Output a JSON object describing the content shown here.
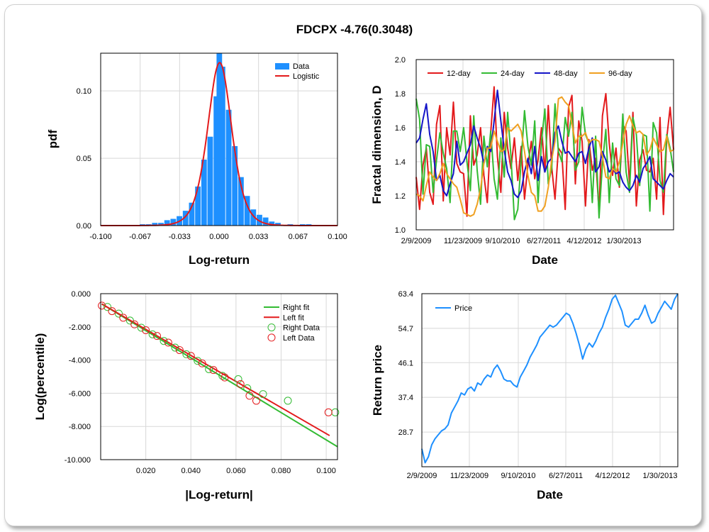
{
  "title": "FDCPX -4.76(0.3048)",
  "chart_data": [
    {
      "id": "hist",
      "type": "bar",
      "xlabel": "Log-return",
      "ylabel": "pdf",
      "xlim": [
        -0.1,
        0.1
      ],
      "ylim": [
        0,
        0.128
      ],
      "xticks": [
        "-0.100",
        "-0.067",
        "-0.033",
        "0.000",
        "0.033",
        "0.067",
        "0.100"
      ],
      "yticks": [
        "0.00",
        "0.05",
        "0.10"
      ],
      "legend": [
        "Data",
        "Logistic"
      ],
      "legend_position": "top-right",
      "colors": {
        "bars": "#1e90ff",
        "fit": "#e31a1c"
      },
      "bin_width": 0.0052,
      "bins": [
        [
          -0.0647,
          0.001
        ],
        [
          -0.0595,
          0.001
        ],
        [
          -0.0543,
          0.002
        ],
        [
          -0.0491,
          0.002
        ],
        [
          -0.0439,
          0.004
        ],
        [
          -0.0387,
          0.005
        ],
        [
          -0.0335,
          0.007
        ],
        [
          -0.0283,
          0.011
        ],
        [
          -0.0231,
          0.017
        ],
        [
          -0.0179,
          0.029
        ],
        [
          -0.0127,
          0.049
        ],
        [
          -0.0075,
          0.066
        ],
        [
          -0.0023,
          0.096
        ],
        [
          0.0002,
          0.128
        ],
        [
          0.0029,
          0.118
        ],
        [
          0.0081,
          0.086
        ],
        [
          0.0133,
          0.059
        ],
        [
          0.0185,
          0.036
        ],
        [
          0.0237,
          0.022
        ],
        [
          0.0289,
          0.012
        ],
        [
          0.0341,
          0.008
        ],
        [
          0.0393,
          0.006
        ],
        [
          0.0445,
          0.003
        ],
        [
          0.0497,
          0.002
        ],
        [
          0.0601,
          0.001
        ],
        [
          0.0705,
          0.001
        ],
        [
          0.0757,
          0.001
        ]
      ],
      "fit": {
        "type": "logistic",
        "mu": 0.0005,
        "s": 0.0068,
        "peak": 0.121
      }
    },
    {
      "id": "fractal",
      "type": "line",
      "xlabel": "Date",
      "ylabel": "Fractal dimension, D",
      "ylim": [
        1.0,
        2.0
      ],
      "xticks": [
        "2/9/2009",
        "11/23/2009",
        "9/10/2010",
        "6/27/2011",
        "4/12/2012",
        "1/30/2013"
      ],
      "yticks": [
        "1.0",
        "1.2",
        "1.4",
        "1.6",
        "1.8",
        "2.0"
      ],
      "legend_position": "top-left",
      "series": [
        {
          "name": "12-day",
          "color": "#e31a1c",
          "values": [
            1.31,
            1.12,
            1.38,
            1.48,
            1.22,
            1.15,
            1.62,
            1.73,
            1.17,
            1.6,
            1.44,
            1.75,
            1.39,
            1.34,
            1.33,
            1.08,
            1.67,
            1.38,
            1.44,
            1.6,
            1.32,
            1.16,
            1.57,
            1.84,
            1.43,
            1.22,
            1.69,
            1.48,
            1.36,
            1.54,
            1.29,
            1.49,
            1.18,
            1.38,
            1.52,
            1.3,
            1.41,
            1.6,
            1.34,
            1.73,
            1.37,
            1.18,
            1.48,
            1.45,
            1.12,
            1.72,
            1.79,
            1.27,
            1.64,
            1.52,
            1.14,
            1.53,
            1.35,
            1.42,
            1.11,
            1.67,
            1.8,
            1.51,
            1.32,
            1.48,
            1.25,
            1.62,
            1.58,
            1.27,
            1.69,
            1.14,
            1.41,
            1.47,
            1.35,
            1.34,
            1.42,
            1.18,
            1.66,
            1.09,
            1.54,
            1.72,
            1.47
          ]
        },
        {
          "name": "24-day",
          "color": "#33bb33",
          "values": [
            1.77,
            1.65,
            1.21,
            1.5,
            1.49,
            1.22,
            1.41,
            1.57,
            1.45,
            1.36,
            1.16,
            1.58,
            1.58,
            1.46,
            1.6,
            1.4,
            1.23,
            1.67,
            1.35,
            1.15,
            1.55,
            1.37,
            1.58,
            1.3,
            1.18,
            1.54,
            1.31,
            1.69,
            1.43,
            1.06,
            1.12,
            1.41,
            1.7,
            1.49,
            1.38,
            1.64,
            1.16,
            1.52,
            1.71,
            1.27,
            1.36,
            1.74,
            1.46,
            1.4,
            1.66,
            1.55,
            1.69,
            1.35,
            1.4,
            1.72,
            1.56,
            1.51,
            1.16,
            1.55,
            1.07,
            1.39,
            1.59,
            1.16,
            1.51,
            1.3,
            1.26,
            1.68,
            1.34,
            1.22,
            1.66,
            1.56,
            1.26,
            1.56,
            1.55,
            1.11,
            1.63,
            1.57,
            1.29,
            1.22,
            1.56,
            1.48,
            1.34
          ]
        },
        {
          "name": "48-day",
          "color": "#1515c8",
          "values": [
            1.51,
            1.54,
            1.65,
            1.74,
            1.56,
            1.46,
            1.29,
            1.32,
            1.23,
            1.2,
            1.27,
            1.33,
            1.52,
            1.38,
            1.4,
            1.45,
            1.5,
            1.61,
            1.54,
            1.48,
            1.39,
            1.49,
            1.46,
            1.64,
            1.82,
            1.64,
            1.47,
            1.34,
            1.29,
            1.21,
            1.19,
            1.23,
            1.34,
            1.42,
            1.33,
            1.49,
            1.29,
            1.43,
            1.34,
            1.4,
            1.42,
            1.57,
            1.61,
            1.52,
            1.45,
            1.46,
            1.43,
            1.4,
            1.45,
            1.46,
            1.39,
            1.48,
            1.54,
            1.34,
            1.37,
            1.46,
            1.41,
            1.34,
            1.36,
            1.33,
            1.34,
            1.28,
            1.25,
            1.23,
            1.26,
            1.32,
            1.28,
            1.36,
            1.39,
            1.43,
            1.3,
            1.28,
            1.26,
            1.24,
            1.29,
            1.33,
            1.31
          ]
        },
        {
          "name": "96-day",
          "color": "#f0a020",
          "values": [
            1.21,
            1.2,
            1.17,
            1.26,
            1.34,
            1.31,
            1.29,
            1.33,
            1.39,
            1.33,
            1.3,
            1.27,
            1.25,
            1.18,
            1.1,
            1.09,
            1.08,
            1.09,
            1.15,
            1.24,
            1.39,
            1.48,
            1.48,
            1.58,
            1.52,
            1.46,
            1.47,
            1.6,
            1.58,
            1.6,
            1.62,
            1.58,
            1.46,
            1.32,
            1.22,
            1.2,
            1.11,
            1.11,
            1.14,
            1.25,
            1.41,
            1.52,
            1.77,
            1.78,
            1.75,
            1.73,
            1.62,
            1.51,
            1.55,
            1.55,
            1.57,
            1.51,
            1.53,
            1.53,
            1.52,
            1.43,
            1.31,
            1.3,
            1.36,
            1.34,
            1.4,
            1.51,
            1.62,
            1.67,
            1.61,
            1.57,
            1.58,
            1.56,
            1.44,
            1.47,
            1.54,
            1.5,
            1.46,
            1.47,
            1.55,
            1.46,
            1.47
          ]
        }
      ]
    },
    {
      "id": "tail",
      "type": "scatter",
      "xlabel": "|Log-return|",
      "ylabel": "Log(percentile)",
      "xlim": [
        0,
        0.105
      ],
      "ylim": [
        -10,
        0
      ],
      "xticks": [
        "0.020",
        "0.040",
        "0.060",
        "0.080",
        "0.100"
      ],
      "yticks": [
        "0.000",
        "-2.000",
        "-4.000",
        "-6.000",
        "-8.000",
        "-10.000"
      ],
      "legend_position": "top-right",
      "series": [
        {
          "name": "Right fit",
          "kind": "line",
          "color": "#33bb33",
          "points": [
            [
              0.0005,
              -0.62
            ],
            [
              0.105,
              -9.22
            ]
          ]
        },
        {
          "name": "Left fit",
          "kind": "line",
          "color": "#e31a1c",
          "points": [
            [
              0.0005,
              -0.62
            ],
            [
              0.1015,
              -8.55
            ]
          ]
        },
        {
          "name": "Right Data",
          "kind": "points",
          "color": "#33bb33",
          "points": [
            [
              0.003,
              -0.8
            ],
            [
              0.008,
              -1.2
            ],
            [
              0.013,
              -1.62
            ],
            [
              0.018,
              -2.05
            ],
            [
              0.023,
              -2.45
            ],
            [
              0.028,
              -2.85
            ],
            [
              0.033,
              -3.25
            ],
            [
              0.038,
              -3.65
            ],
            [
              0.043,
              -4.05
            ],
            [
              0.048,
              -4.55
            ],
            [
              0.054,
              -4.95
            ],
            [
              0.061,
              -5.15
            ],
            [
              0.065,
              -5.7
            ],
            [
              0.072,
              -6.05
            ],
            [
              0.083,
              -6.45
            ],
            [
              0.104,
              -7.15
            ]
          ]
        },
        {
          "name": "Left Data",
          "kind": "points",
          "color": "#e31a1c",
          "points": [
            [
              0.0005,
              -0.72
            ],
            [
              0.005,
              -1.05
            ],
            [
              0.01,
              -1.45
            ],
            [
              0.015,
              -1.85
            ],
            [
              0.02,
              -2.2
            ],
            [
              0.025,
              -2.55
            ],
            [
              0.03,
              -2.95
            ],
            [
              0.035,
              -3.4
            ],
            [
              0.04,
              -3.75
            ],
            [
              0.045,
              -4.2
            ],
            [
              0.05,
              -4.6
            ],
            [
              0.055,
              -5.05
            ],
            [
              0.062,
              -5.45
            ],
            [
              0.066,
              -6.15
            ],
            [
              0.069,
              -6.45
            ],
            [
              0.101,
              -7.15
            ]
          ]
        }
      ]
    },
    {
      "id": "price",
      "type": "line",
      "xlabel": "Date",
      "ylabel": "Return price",
      "ylim": [
        20.0,
        63.4
      ],
      "xticks": [
        "2/9/2009",
        "11/23/2009",
        "9/10/2010",
        "6/27/2011",
        "4/12/2012",
        "1/30/2013"
      ],
      "yticks": [
        "63.4",
        "54.7",
        "46.1",
        "37.4",
        "28.7"
      ],
      "legend_position": "top-left",
      "series": [
        {
          "name": "Price",
          "color": "#1e90ff",
          "values": [
            24.5,
            21.0,
            22.5,
            25.5,
            27.0,
            28.0,
            29.0,
            29.5,
            30.5,
            33.5,
            35.0,
            36.5,
            38.5,
            38.0,
            39.5,
            40.0,
            39.0,
            41.0,
            40.5,
            42.0,
            43.0,
            42.5,
            44.5,
            45.5,
            44.0,
            42.0,
            41.5,
            41.5,
            40.5,
            40.0,
            42.5,
            44.0,
            45.5,
            47.5,
            49.0,
            50.5,
            52.5,
            53.5,
            54.5,
            55.5,
            55.0,
            55.5,
            56.5,
            57.5,
            58.5,
            58.0,
            56.0,
            53.5,
            50.5,
            47.0,
            49.5,
            51.0,
            50.0,
            51.5,
            53.5,
            55.0,
            57.5,
            59.5,
            62.0,
            63.0,
            61.0,
            59.0,
            55.5,
            55.0,
            56.0,
            57.0,
            57.0,
            58.5,
            60.5,
            58.0,
            56.0,
            56.5,
            58.5,
            60.0,
            61.5,
            60.5,
            59.5,
            62.0,
            63.4
          ]
        }
      ]
    }
  ]
}
